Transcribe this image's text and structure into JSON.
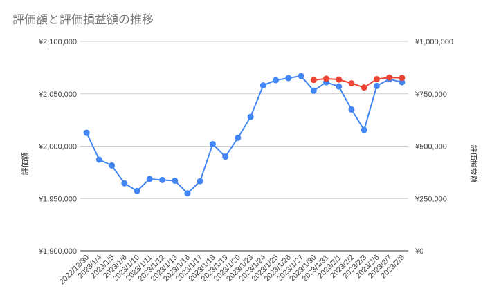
{
  "chart_data": {
    "type": "line",
    "title": "評価額と評価損益額の推移",
    "ylabel_left": "評価額",
    "ylabel_right": "評価損益額",
    "ylim_left": [
      1900000,
      2100000
    ],
    "ylim_right": [
      0,
      1000000
    ],
    "yticks_left": [
      "¥1,900,000",
      "¥1,950,000",
      "¥2,000,000",
      "¥2,050,000",
      "¥2,100,000"
    ],
    "yticks_right": [
      "¥0",
      "¥250,000",
      "¥500,000",
      "¥750,000",
      "¥1,000,000"
    ],
    "grid": true,
    "categories": [
      "2022/12/30",
      "2023/1/4",
      "2023/1/5",
      "2023/1/6",
      "2023/1/10",
      "2023/1/11",
      "2023/1/12",
      "2023/1/13",
      "2023/1/16",
      "2023/1/17",
      "2023/1/18",
      "2023/1/19",
      "2023/1/20",
      "2023/1/23",
      "2023/1/24",
      "2023/1/25",
      "2023/1/26",
      "2023/1/27",
      "2023/1/30",
      "2023/1/31",
      "2023/2/1",
      "2023/2/2",
      "2023/2/3",
      "2023/2/6",
      "2023/2/7",
      "2023/2/8"
    ],
    "series": [
      {
        "name": "評価額",
        "axis": "left",
        "color": "#4285f4",
        "values": [
          2012800,
          1987100,
          1981600,
          1964500,
          1957300,
          1968700,
          1967700,
          1967000,
          1955000,
          1966600,
          2002000,
          1990000,
          2008000,
          2028000,
          2058000,
          2063000,
          2065000,
          2067000,
          2053000,
          2061000,
          2057000,
          2035000,
          2015500,
          2057500,
          2064000,
          2061000
        ]
      },
      {
        "name": "評価損益額",
        "axis": "right",
        "color": "#ea4335",
        "values": [
          null,
          null,
          null,
          null,
          null,
          null,
          null,
          null,
          null,
          null,
          null,
          null,
          null,
          null,
          null,
          null,
          null,
          null,
          816000,
          822000,
          818000,
          800000,
          780000,
          820000,
          828000,
          826000
        ]
      }
    ]
  }
}
